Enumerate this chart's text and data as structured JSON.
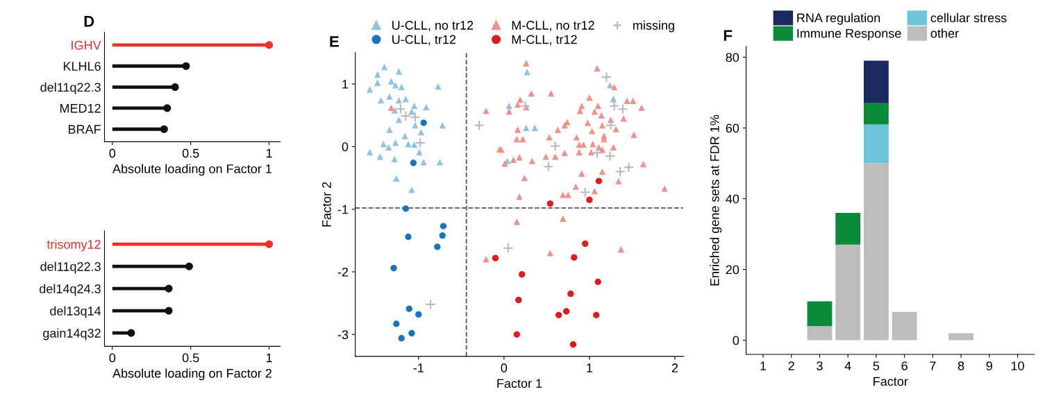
{
  "chart_data": [
    {
      "type": "lollipop",
      "title": "D",
      "orientation": "horizontal",
      "xlabel": "Absolute loading on Factor 1",
      "categories": [
        "IGHV",
        "KLHL6",
        "del11q22.3",
        "MED12",
        "BRAF"
      ],
      "values": [
        1,
        0.47,
        0.4,
        0.35,
        0.33
      ],
      "colors": [
        "#e8312a",
        "#111111",
        "#111111",
        "#111111",
        "#111111"
      ],
      "xlim": [
        -0.05,
        1.07
      ],
      "xticks": [
        0,
        0.5,
        1
      ],
      "grid": false
    },
    {
      "type": "lollipop",
      "orientation": "horizontal",
      "xlabel": "Absolute loading on Factor 2",
      "categories": [
        "trisomy12",
        "del11q22.3",
        "del14q24.3",
        "del13q14",
        "gain14q32"
      ],
      "values": [
        1,
        0.49,
        0.36,
        0.36,
        0.12
      ],
      "colors": [
        "#e8312a",
        "#111111",
        "#111111",
        "#111111",
        "#111111"
      ],
      "xlim": [
        -0.05,
        1.07
      ],
      "xticks": [
        0,
        0.5,
        1
      ],
      "grid": false
    },
    {
      "type": "scatter",
      "title": "E",
      "xlabel": "Factor 1",
      "ylabel": "Factor 2",
      "xlim": [
        -1.74,
        2.1
      ],
      "ylim": [
        -3.35,
        1.5
      ],
      "xticks": [
        -1,
        0,
        1,
        2
      ],
      "yticks": [
        -3,
        -2,
        -1,
        0,
        1
      ],
      "grid": false,
      "legend": "top",
      "ref_lines": [
        {
          "axis": "x",
          "value": -0.44,
          "color": "#555555",
          "line_style": "dashed"
        },
        {
          "axis": "y",
          "value": -0.98,
          "color": "#555555",
          "line_style": "dashed"
        }
      ],
      "series": [
        {
          "name": "U-CLL, no tr12",
          "color": "#8ec3e6",
          "marker": "triangle",
          "x": [
            -1.4,
            -1.23,
            -1.48,
            -1.57,
            -1.48,
            -1.32,
            -1.27,
            -1.2,
            -0.77,
            -1.44,
            -1.34,
            -1.23,
            -1.15,
            -1.05,
            -0.91,
            -1.28,
            -1.08,
            -1.34,
            -1.23,
            -1.04,
            -0.72,
            -0.97,
            -1.16,
            -1.41,
            -1.27,
            -1.35,
            -1.12,
            -1.05,
            -1.57,
            -1.45,
            -1.28,
            -0.99,
            -0.94,
            -0.75,
            -1.26,
            -1.08,
            0.27,
            1.24,
            1.28,
            0.06,
            0.26,
            0.36,
            0.15,
            0.04
          ],
          "values": [
            1.27,
            1.2,
            1.15,
            0.91,
            1.02,
            1.04,
            0.98,
            0.95,
            0.96,
            0.74,
            0.8,
            0.74,
            0.76,
            0.65,
            0.63,
            0.58,
            0.56,
            0.27,
            0.43,
            0.34,
            0.34,
            0.23,
            0.17,
            0.04,
            0.06,
            -0.01,
            0.04,
            0.03,
            -0.09,
            -0.16,
            -0.2,
            -0.09,
            -0.25,
            -0.25,
            -0.51,
            -0.69,
            1.19,
            0.98,
            0.76,
            0.65,
            0.3,
            0.3,
            null,
            -0.23
          ]
        },
        {
          "name": "U-CLL, tr12",
          "color": "#1a73c0",
          "marker": "circle",
          "x": [
            -0.94,
            -1.06,
            -1.15,
            -1.12,
            -0.71,
            -0.72,
            -0.78,
            -1.29,
            -1.11,
            -1.0,
            -1.26,
            -1.08,
            -1.2
          ],
          "values": [
            0.38,
            -0.26,
            -0.99,
            -1.44,
            -1.27,
            -1.42,
            -1.6,
            -1.94,
            -2.59,
            -2.68,
            -2.83,
            -2.98,
            -3.06
          ]
        },
        {
          "name": "M-CLL, no tr12",
          "color": "#f4908a",
          "marker": "triangle",
          "x": [
            0.26,
            1.09,
            1.29,
            0.32,
            0.55,
            0.19,
            0.16,
            0.26,
            0.06,
            1.0,
            0.91,
            0.89,
            1.1,
            1.06,
            1.14,
            1.44,
            1.51,
            1.61,
            1.4,
            1.25,
            0.74,
            0.71,
            0.98,
            1.15,
            1.31,
            0.63,
            1.03,
            1.17,
            0.16,
            0.15,
            0.22,
            0.53,
            0.85,
            1.17,
            1.52,
            0.88,
            0.93,
            1.04,
            1.11,
            1.28,
            -0.03,
            0.71,
            0.88,
            1.02,
            1.15,
            0.18,
            0.11,
            0.01,
            0.49,
            0.6,
            0.33,
            1.63,
            0.91,
            1.15,
            1.34,
            0.24,
            0.84,
            1.06,
            0.18,
            0.69,
            0.75,
            1.88,
            -1.32,
            -0.21,
            -0.05,
            0.69,
            0.15,
            0.54,
            -0.21,
            1.37
          ],
          "values": [
            1.33,
            1.25,
            0.95,
            0.85,
            0.85,
            0.75,
            0.67,
            0.63,
            0.56,
            0.78,
            0.65,
            0.57,
            0.65,
            0.56,
            0.5,
            0.73,
            0.73,
            0.62,
            0.45,
            0.43,
            0.39,
            0.34,
            0.38,
            0.34,
            0.28,
            0.27,
            0.25,
            0.17,
            0.27,
            0.12,
            0.12,
            0.15,
            0.15,
            0.12,
            0.19,
            0.03,
            0.03,
            0.04,
            -0.01,
            -0.01,
            -0.05,
            -0.1,
            -0.09,
            -0.09,
            -0.05,
            -0.17,
            -0.21,
            -0.27,
            -0.16,
            -0.16,
            -0.23,
            -0.28,
            -0.43,
            -0.4,
            -0.55,
            -0.5,
            -0.64,
            -0.71,
            -0.8,
            -0.77,
            -0.77,
            -0.67,
            0.62,
            0.57,
            -0.04,
            -1.15,
            -1.2,
            -1.7,
            -1.8,
            -1.64
          ]
        },
        {
          "name": "M-CLL, tr12",
          "color": "#e31a1c",
          "marker": "circle",
          "x": [
            1.11,
            1.0,
            0.54,
            -0.1,
            0.95,
            0.82,
            0.21,
            1.1,
            0.17,
            0.78,
            0.73,
            0.64,
            1.08,
            0.15,
            0.81
          ],
          "values": [
            -0.55,
            -0.85,
            -0.91,
            -1.78,
            -1.55,
            -1.77,
            -2.04,
            -2.16,
            -2.45,
            -2.35,
            -2.63,
            -2.69,
            -2.69,
            -3.0,
            -3.16
          ]
        },
        {
          "name": "missing",
          "color": "#b8b8b8",
          "marker": "cross",
          "x": [
            -1.15,
            -1.04,
            -0.29,
            -0.98,
            -1.21,
            1.2,
            1.29,
            1.39,
            0.25,
            1.25,
            0.6,
            1.09,
            1.24,
            0.52,
            1.46,
            1.36,
            0.95,
            0.05,
            -0.86
          ],
          "values": [
            0.49,
            0.47,
            0.34,
            0.06,
            0.6,
            1.11,
            0.65,
            0.6,
            0.65,
            0.34,
            0.01,
            -0.1,
            -0.15,
            -0.32,
            -0.33,
            -0.4,
            -0.73,
            -1.62,
            -2.52
          ]
        }
      ]
    },
    {
      "type": "bar",
      "title": "F",
      "stacked": true,
      "xlabel": "Factor",
      "ylabel": "Enriched gene sets at FDR 1%",
      "ylim": [
        -4,
        83
      ],
      "yticks": [
        0,
        20,
        40,
        60,
        80
      ],
      "grid": false,
      "legend": "top",
      "categories": [
        "1",
        "2",
        "3",
        "4",
        "5",
        "6",
        "7",
        "8",
        "9",
        "10"
      ],
      "series": [
        {
          "name": "other",
          "color": "#bdbdbd",
          "values": [
            0,
            0,
            4,
            27,
            50,
            8,
            0,
            2,
            0,
            0
          ]
        },
        {
          "name": "cellular stress",
          "color": "#6cc5d8",
          "values": [
            0,
            0,
            0,
            0,
            11,
            0,
            0,
            0,
            0,
            0
          ]
        },
        {
          "name": "Immune Response",
          "color": "#0b8a3a",
          "values": [
            0,
            0,
            7,
            9,
            6,
            0,
            0,
            0,
            0,
            0
          ]
        },
        {
          "name": "RNA regulation",
          "color": "#1b2a5e",
          "values": [
            0,
            0,
            0,
            0,
            12,
            0,
            0,
            0,
            0,
            0
          ]
        }
      ]
    }
  ]
}
